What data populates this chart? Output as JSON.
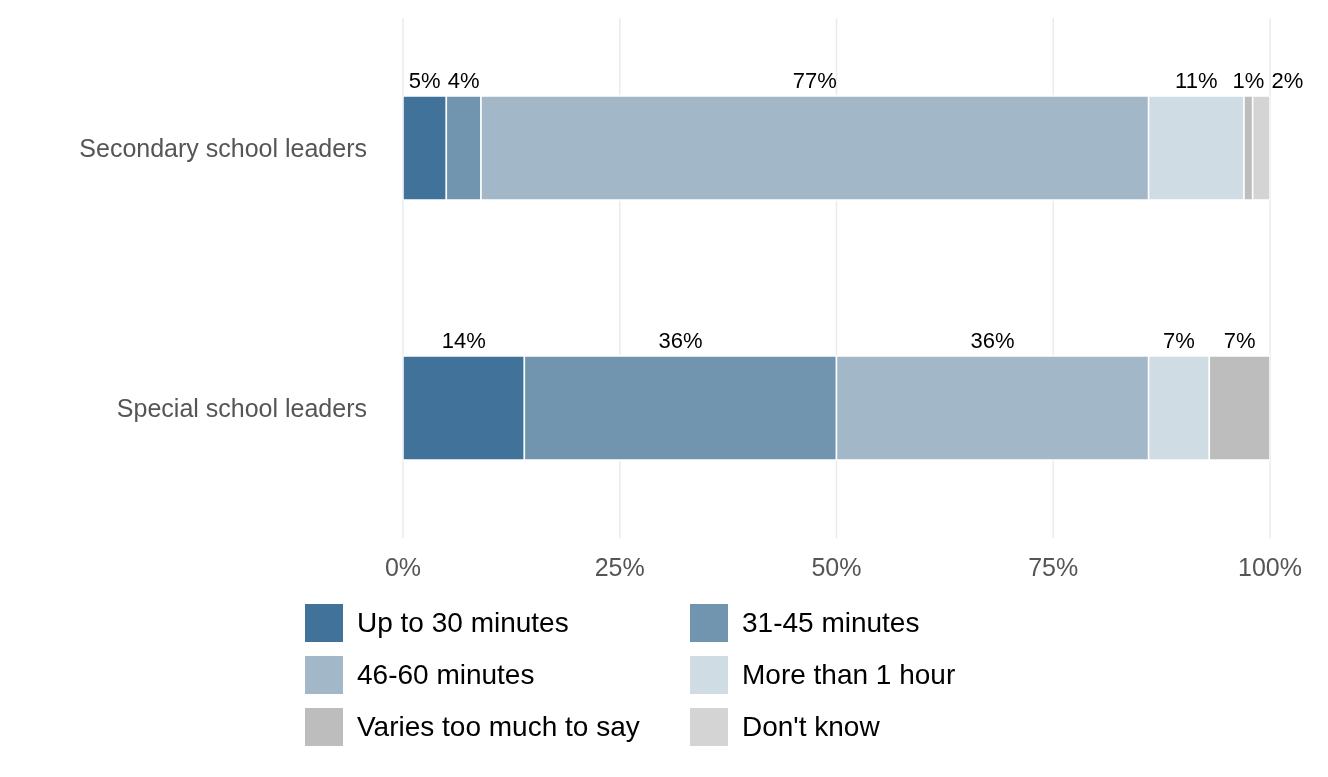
{
  "chart_data": {
    "type": "bar",
    "orientation": "horizontal",
    "stacked": true,
    "categories": [
      "Secondary school leaders",
      "Special school leaders"
    ],
    "series": [
      {
        "name": "Up to 30 minutes",
        "color": "#41739a",
        "values": [
          5,
          14
        ],
        "value_labels": [
          "5%",
          "14%"
        ]
      },
      {
        "name": "31-45 minutes",
        "color": "#7195ae",
        "values": [
          4,
          36
        ],
        "value_labels": [
          "4%",
          "36%"
        ]
      },
      {
        "name": "46-60 minutes",
        "color": "#a2b8c8",
        "values": [
          77,
          36
        ],
        "value_labels": [
          "77%",
          "36%"
        ]
      },
      {
        "name": "More than 1 hour",
        "color": "#d0dce4",
        "values": [
          11,
          7
        ],
        "value_labels": [
          "11%",
          "7%"
        ]
      },
      {
        "name": "Varies too much to say",
        "color": "#bdbdbd",
        "values": [
          1,
          7
        ],
        "value_labels": [
          "1%",
          "7%"
        ]
      },
      {
        "name": "Don't know",
        "color": "#d4d4d4",
        "values": [
          2,
          null
        ],
        "value_labels": [
          "2%",
          null
        ]
      }
    ],
    "xlim": [
      0,
      100
    ],
    "xticks": [
      {
        "value": 0,
        "label": "0%"
      },
      {
        "value": 25,
        "label": "25%"
      },
      {
        "value": 50,
        "label": "50%"
      },
      {
        "value": 75,
        "label": "75%"
      },
      {
        "value": 100,
        "label": "100%"
      }
    ],
    "grid": "x",
    "legend": "bottom"
  }
}
